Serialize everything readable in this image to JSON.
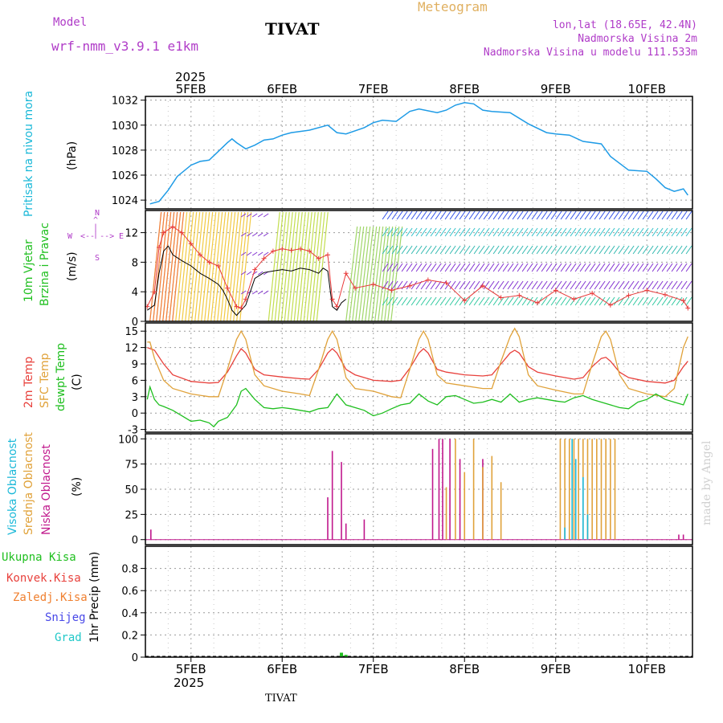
{
  "header": {
    "model_label": "Model",
    "model_name": "wrf-nmm_v3.9.1 e1km",
    "station": "TIVAT",
    "product": "Meteogram",
    "coords": "lon,lat (18.65E, 42.4N)",
    "elevation": "Nadmorska Visina 2m",
    "model_elevation": "Nadmorska Visina u modelu 111.533m"
  },
  "footer": {
    "station": "TIVAT",
    "credit": "made by Angel"
  },
  "colors": {
    "pressure": "#1e9be6",
    "temp2m": "#e8413c",
    "sfc_temp": "#e0a23a",
    "dewpoint": "#1fbf1f",
    "cloud_high": "#1ab8d8",
    "cloud_mid": "#e0a23a",
    "cloud_low": "#c0188c",
    "precip": "#1fbf1f",
    "wind_speed": "#000000",
    "gust": "#e83a3a",
    "legend_purple": "#b03cc8"
  },
  "time_axis": {
    "year": "2025",
    "days": [
      "5FEB",
      "6FEB",
      "7FEB",
      "8FEB",
      "9FEB",
      "10FEB"
    ],
    "range_days": [
      -0.5,
      5.5
    ]
  },
  "panels": {
    "pressure": {
      "ylabel": "Pritisak na nivou mora",
      "unit": "(hPa)"
    },
    "wind": {
      "ylabel_1": "10m Vjetar",
      "ylabel_2": "Brzina i Pravac",
      "unit": "(m/s)",
      "compass": [
        "N",
        "W",
        "E",
        "S"
      ]
    },
    "temp": {
      "ylabel_1": "2m Temp",
      "ylabel_2": "SFC Temp",
      "ylabel_3": "dewpt Temp",
      "unit": "(C)"
    },
    "cloud": {
      "ylabel_1": "Visoka Oblacnost",
      "ylabel_2": "Srednja Oblacnost",
      "ylabel_3": "Niska Oblacnost",
      "unit": "(%)"
    },
    "precip": {
      "legend": [
        "Ukupna Kisa",
        "Konvek.Kisa",
        "Zaledj.Kisa",
        "Snijeg",
        "Grad"
      ],
      "unit": "1hr Precip (mm)"
    }
  },
  "chart_data": [
    {
      "type": "line",
      "panel": "pressure",
      "ylabel": "Pritisak na nivou mora (hPa)",
      "ylim": [
        1023.3,
        1032.3
      ],
      "yticks": [
        1024,
        1026,
        1028,
        1030,
        1032
      ],
      "series": [
        {
          "x": [
            -0.45,
            -0.35,
            -0.25,
            -0.15,
            0.0,
            0.1,
            0.2,
            0.3,
            0.4,
            0.45,
            0.5,
            0.6,
            0.7,
            0.8,
            0.9,
            1.0,
            1.1,
            1.3,
            1.5,
            1.6,
            1.7,
            1.9,
            2.0,
            2.1,
            2.25,
            2.4,
            2.5,
            2.7,
            2.8,
            2.9,
            3.0,
            3.1,
            3.2,
            3.3,
            3.5,
            3.7,
            3.9,
            4.0,
            4.15,
            4.3,
            4.5,
            4.6,
            4.8,
            5.0,
            5.1,
            5.2,
            5.3,
            5.4,
            5.45
          ],
          "values": [
            1023.7,
            1023.9,
            1024.8,
            1025.9,
            1026.8,
            1027.1,
            1027.2,
            1027.9,
            1028.6,
            1028.9,
            1028.6,
            1028.1,
            1028.4,
            1028.8,
            1028.9,
            1029.2,
            1029.4,
            1029.6,
            1030.0,
            1029.4,
            1029.3,
            1029.8,
            1030.2,
            1030.4,
            1030.3,
            1031.1,
            1031.3,
            1031.0,
            1031.2,
            1031.6,
            1031.8,
            1031.7,
            1031.2,
            1031.1,
            1031.0,
            1030.1,
            1029.4,
            1029.3,
            1029.2,
            1028.7,
            1028.5,
            1027.5,
            1026.4,
            1026.3,
            1025.7,
            1025.0,
            1024.7,
            1024.9,
            1024.4
          ]
        }
      ]
    },
    {
      "type": "line",
      "panel": "wind",
      "ylabel": "10m Vjetar Brzina i Pravac (m/s)",
      "ylim": [
        0,
        15
      ],
      "yticks": [
        0,
        4,
        8,
        12
      ],
      "series": [
        {
          "name": "speed",
          "x": [
            -0.48,
            -0.4,
            -0.35,
            -0.3,
            -0.25,
            -0.2,
            -0.1,
            0.0,
            0.1,
            0.2,
            0.3,
            0.35,
            0.4,
            0.45,
            0.5,
            0.55,
            0.6,
            0.7,
            0.8,
            0.9,
            1.0,
            1.1,
            1.2,
            1.3,
            1.4,
            1.45,
            1.5,
            1.55,
            1.6,
            1.65,
            1.7
          ],
          "values": [
            1.5,
            2.2,
            6.5,
            9.5,
            10.2,
            9.0,
            8.2,
            7.5,
            6.5,
            5.8,
            5.0,
            4.2,
            3.0,
            1.5,
            0.8,
            1.5,
            2.2,
            5.8,
            6.6,
            6.8,
            7.0,
            6.8,
            7.2,
            7.0,
            6.5,
            7.2,
            6.8,
            2.0,
            1.5,
            2.5,
            3.0
          ]
        },
        {
          "name": "gust",
          "x": [
            -0.48,
            -0.4,
            -0.35,
            -0.3,
            -0.2,
            -0.1,
            0.0,
            0.1,
            0.2,
            0.3,
            0.4,
            0.5,
            0.55,
            0.6,
            0.7,
            0.8,
            0.9,
            1.0,
            1.1,
            1.2,
            1.3,
            1.4,
            1.5,
            1.55,
            1.6,
            1.7,
            1.8,
            2.0,
            2.2,
            2.4,
            2.6,
            2.8,
            3.0,
            3.2,
            3.4,
            3.6,
            3.8,
            4.0,
            4.2,
            4.4,
            4.6,
            4.8,
            5.0,
            5.2,
            5.4,
            5.45
          ],
          "values": [
            2.0,
            4.0,
            10.0,
            12.0,
            12.8,
            12.0,
            10.5,
            9.0,
            8.0,
            7.5,
            4.5,
            2.0,
            1.8,
            3.0,
            7.0,
            8.5,
            9.5,
            9.8,
            9.6,
            9.8,
            9.5,
            8.5,
            9.0,
            3.0,
            2.0,
            6.5,
            4.5,
            5.0,
            4.2,
            4.8,
            5.6,
            5.2,
            2.8,
            4.8,
            3.2,
            3.5,
            2.5,
            4.2,
            3.0,
            3.8,
            2.2,
            3.5,
            4.2,
            3.6,
            2.8,
            1.8
          ]
        }
      ]
    },
    {
      "type": "line",
      "panel": "temperature",
      "ylabel": "Temp (C)",
      "ylim": [
        -3.5,
        16.5
      ],
      "yticks": [
        -3,
        0,
        3,
        6,
        9,
        12,
        15
      ],
      "series": [
        {
          "name": "2m Temp",
          "x": [
            -0.48,
            -0.4,
            -0.3,
            -0.2,
            0.0,
            0.2,
            0.3,
            0.4,
            0.5,
            0.55,
            0.6,
            0.7,
            0.8,
            1.0,
            1.2,
            1.3,
            1.4,
            1.5,
            1.55,
            1.6,
            1.7,
            1.8,
            2.0,
            2.2,
            2.3,
            2.4,
            2.5,
            2.55,
            2.6,
            2.7,
            2.8,
            3.0,
            3.2,
            3.3,
            3.4,
            3.5,
            3.55,
            3.6,
            3.7,
            3.8,
            4.0,
            4.2,
            4.3,
            4.4,
            4.5,
            4.55,
            4.6,
            4.7,
            4.8,
            5.0,
            5.2,
            5.3,
            5.4,
            5.45
          ],
          "values": [
            12,
            11.5,
            9,
            7,
            5.8,
            5.5,
            5.6,
            7.5,
            10.5,
            11.8,
            11,
            8,
            7,
            6.6,
            6.3,
            6.2,
            8,
            11,
            11.8,
            11,
            8,
            7,
            6,
            5.8,
            6,
            8.2,
            11,
            11.8,
            11,
            8,
            7.5,
            7,
            6.8,
            7,
            9,
            11,
            11.5,
            11,
            8.5,
            7.5,
            6.8,
            6.2,
            6.5,
            8.5,
            10,
            10.2,
            9.5,
            7.5,
            6.5,
            5.8,
            5.5,
            6,
            8.5,
            9.5
          ]
        },
        {
          "name": "SFC Temp",
          "x": [
            -0.48,
            -0.45,
            -0.4,
            -0.3,
            -0.2,
            0.0,
            0.2,
            0.3,
            0.4,
            0.5,
            0.55,
            0.6,
            0.7,
            0.8,
            1.0,
            1.2,
            1.3,
            1.4,
            1.5,
            1.55,
            1.6,
            1.7,
            1.8,
            2.0,
            2.2,
            2.3,
            2.4,
            2.5,
            2.55,
            2.6,
            2.7,
            2.8,
            3.0,
            3.2,
            3.3,
            3.4,
            3.5,
            3.55,
            3.6,
            3.7,
            3.8,
            4.0,
            4.2,
            4.3,
            4.4,
            4.5,
            4.55,
            4.6,
            4.7,
            4.8,
            5.0,
            5.2,
            5.3,
            5.4,
            5.45
          ],
          "values": [
            13,
            13,
            10,
            6,
            4.5,
            3.5,
            3,
            3,
            8,
            13.5,
            15,
            13.5,
            7,
            5,
            4,
            3.5,
            3.2,
            8,
            13.5,
            15,
            13.5,
            6.5,
            4.5,
            4,
            3,
            2.8,
            8,
            13.5,
            15,
            13.5,
            7,
            5.5,
            5,
            4.5,
            4.5,
            9.5,
            14,
            15.5,
            14,
            7,
            5,
            4.2,
            3.5,
            3.5,
            9,
            14,
            15,
            13.5,
            7,
            4.5,
            3.5,
            3,
            4.5,
            12,
            14
          ]
        },
        {
          "name": "dewpt Temp",
          "x": [
            -0.48,
            -0.45,
            -0.4,
            -0.35,
            -0.3,
            -0.2,
            -0.1,
            0.0,
            0.1,
            0.2,
            0.25,
            0.3,
            0.4,
            0.5,
            0.55,
            0.6,
            0.7,
            0.8,
            0.9,
            1.0,
            1.1,
            1.2,
            1.3,
            1.4,
            1.5,
            1.6,
            1.7,
            1.8,
            1.9,
            2.0,
            2.1,
            2.2,
            2.3,
            2.4,
            2.5,
            2.6,
            2.7,
            2.8,
            2.9,
            3.0,
            3.1,
            3.2,
            3.3,
            3.4,
            3.5,
            3.6,
            3.7,
            3.8,
            3.9,
            4.0,
            4.1,
            4.2,
            4.3,
            4.4,
            4.5,
            4.6,
            4.7,
            4.8,
            4.9,
            5.0,
            5.1,
            5.2,
            5.3,
            5.4,
            5.45
          ],
          "values": [
            2.5,
            4.8,
            2.5,
            1.5,
            1.2,
            0.5,
            -0.5,
            -1.5,
            -1.3,
            -1.8,
            -2.5,
            -1.5,
            -0.8,
            1.5,
            4,
            4.5,
            2.5,
            1,
            0.8,
            1,
            0.8,
            0.5,
            0.2,
            0.8,
            1,
            3.5,
            1.5,
            1,
            0.5,
            -0.5,
            0,
            0.8,
            1.5,
            1.8,
            3.5,
            2.2,
            1.5,
            3,
            3.2,
            2.5,
            1.8,
            2,
            2.5,
            2,
            3.5,
            2,
            2.5,
            2.8,
            2.5,
            2.2,
            2,
            2.8,
            3.2,
            2.5,
            2,
            1.5,
            1,
            0.8,
            2,
            2.5,
            3.5,
            2.5,
            2,
            1.5,
            3.5
          ]
        }
      ]
    },
    {
      "type": "bar",
      "panel": "cloud",
      "ylabel": "Oblacnost (%)",
      "ylim": [
        -5,
        105
      ],
      "yticks": [
        0,
        25,
        50,
        75,
        100
      ],
      "series": [
        {
          "name": "Niska Oblacnost",
          "x": [
            -0.44,
            1.5,
            1.55,
            1.65,
            1.7,
            1.9,
            2.65,
            2.72,
            2.76,
            2.84,
            2.95,
            3.2,
            5.35,
            5.4
          ],
          "values": [
            10,
            42,
            88,
            77,
            16,
            20,
            90,
            100,
            100,
            100,
            80,
            80,
            5,
            5
          ]
        },
        {
          "name": "Srednja Oblacnost",
          "x": [
            2.8,
            2.9,
            3.0,
            3.1,
            3.2,
            3.3,
            3.4,
            4.05,
            4.1,
            4.15,
            4.2,
            4.25,
            4.3,
            4.35,
            4.4,
            4.45,
            4.5,
            4.55,
            4.6,
            4.65
          ],
          "values": [
            52,
            100,
            67,
            100,
            72,
            83,
            57,
            100,
            100,
            100,
            100,
            100,
            100,
            100,
            100,
            100,
            100,
            100,
            100,
            100
          ]
        },
        {
          "name": "Visoka Oblacnost",
          "x": [
            4.1,
            4.18,
            4.22,
            4.3,
            4.35
          ],
          "values": [
            12,
            100,
            80,
            62,
            25
          ]
        }
      ]
    },
    {
      "type": "bar",
      "panel": "precip",
      "ylabel": "1hr Precip (mm)",
      "ylim": [
        0,
        1.0
      ],
      "yticks": [
        0,
        0.2,
        0.4,
        0.6,
        0.8
      ],
      "series": [
        {
          "name": "Ukupna Kisa",
          "x": [
            1.65,
            1.7
          ],
          "values": [
            0.04,
            0.02
          ]
        }
      ]
    }
  ]
}
